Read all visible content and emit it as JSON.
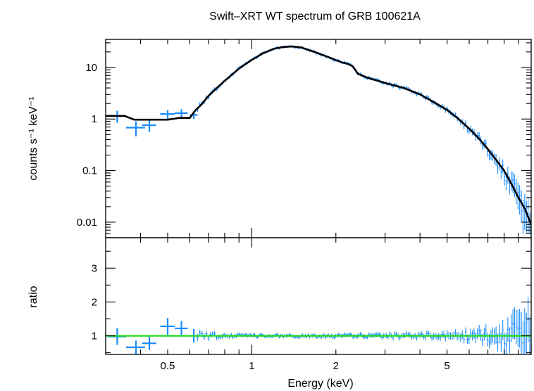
{
  "chart_data": [
    {
      "type": "scatter",
      "panel": "spectrum",
      "title": "Swift–XRT WT spectrum of GRB 100621A",
      "xlabel": "Energy (keV)",
      "ylabel": "counts s⁻¹ keV⁻¹",
      "x_scale": "log",
      "y_scale": "log",
      "xlim": [
        0.3,
        10
      ],
      "ylim": [
        0.005,
        35
      ],
      "y_tick_labels": [
        "0.01",
        "0.1",
        "1",
        "10"
      ],
      "y_ticks": [
        0.01,
        0.1,
        1,
        10
      ],
      "data_color": "#1a8cff",
      "model_color": "#000000",
      "data_points": [
        {
          "e": 0.33,
          "de": 0.025,
          "y": 1.15,
          "dy": 0.3
        },
        {
          "e": 0.385,
          "de": 0.03,
          "y": 0.68,
          "dy": 0.22
        },
        {
          "e": 0.43,
          "de": 0.025,
          "y": 0.76,
          "dy": 0.2
        },
        {
          "e": 0.5,
          "de": 0.03,
          "y": 1.25,
          "dy": 0.25
        },
        {
          "e": 0.56,
          "de": 0.03,
          "y": 1.3,
          "dy": 0.25
        },
        {
          "e": 0.62,
          "de": 0.02,
          "y": 1.2,
          "dy": 0.2
        }
      ],
      "model": [
        [
          0.3,
          1.15
        ],
        [
          0.35,
          1.15
        ],
        [
          0.38,
          0.97
        ],
        [
          0.5,
          0.97
        ],
        [
          0.55,
          1.05
        ],
        [
          0.6,
          1.05
        ],
        [
          0.63,
          1.5
        ],
        [
          0.66,
          1.9
        ],
        [
          0.7,
          2.8
        ],
        [
          0.75,
          4.0
        ],
        [
          0.8,
          5.5
        ],
        [
          0.9,
          9.5
        ],
        [
          1.0,
          14.0
        ],
        [
          1.1,
          19.0
        ],
        [
          1.2,
          23.0
        ],
        [
          1.3,
          25.0
        ],
        [
          1.4,
          25.5
        ],
        [
          1.5,
          24.5
        ],
        [
          1.7,
          19.5
        ],
        [
          1.9,
          15.5
        ],
        [
          2.1,
          12.5
        ],
        [
          2.2,
          11.8
        ],
        [
          2.3,
          10.5
        ],
        [
          2.4,
          7.5
        ],
        [
          2.6,
          6.3
        ],
        [
          3.0,
          5.0
        ],
        [
          3.5,
          4.0
        ],
        [
          4.0,
          3.0
        ],
        [
          4.5,
          2.1
        ],
        [
          5.0,
          1.5
        ],
        [
          5.5,
          1.0
        ],
        [
          6.0,
          0.65
        ],
        [
          6.5,
          0.42
        ],
        [
          7.0,
          0.26
        ],
        [
          7.5,
          0.16
        ],
        [
          8.0,
          0.1
        ],
        [
          8.5,
          0.055
        ],
        [
          9.0,
          0.03
        ],
        [
          9.5,
          0.018
        ],
        [
          10.0,
          0.009
        ]
      ]
    },
    {
      "type": "scatter",
      "panel": "ratio",
      "xlabel": "Energy (keV)",
      "ylabel": "ratio",
      "x_scale": "log",
      "xlim": [
        0.3,
        10
      ],
      "ylim": [
        0.45,
        3.9
      ],
      "x_ticks": [
        0.5,
        1,
        2,
        5
      ],
      "x_tick_labels": [
        "0.5",
        "1",
        "2",
        "5"
      ],
      "y_ticks": [
        1,
        2,
        3
      ],
      "y_tick_labels": [
        "1",
        "2",
        "3"
      ],
      "reference_line": 1.0,
      "reference_color": "#22dd22",
      "data_points": [
        {
          "e": 0.33,
          "de": 0.025,
          "y": 0.98,
          "dy": 0.25
        },
        {
          "e": 0.385,
          "de": 0.03,
          "y": 0.66,
          "dy": 0.2
        },
        {
          "e": 0.43,
          "de": 0.025,
          "y": 0.78,
          "dy": 0.2
        },
        {
          "e": 0.5,
          "de": 0.03,
          "y": 1.28,
          "dy": 0.25
        },
        {
          "e": 0.56,
          "de": 0.03,
          "y": 1.22,
          "dy": 0.22
        },
        {
          "e": 0.62,
          "de": 0.02,
          "y": 1.0,
          "dy": 0.2
        }
      ]
    }
  ]
}
